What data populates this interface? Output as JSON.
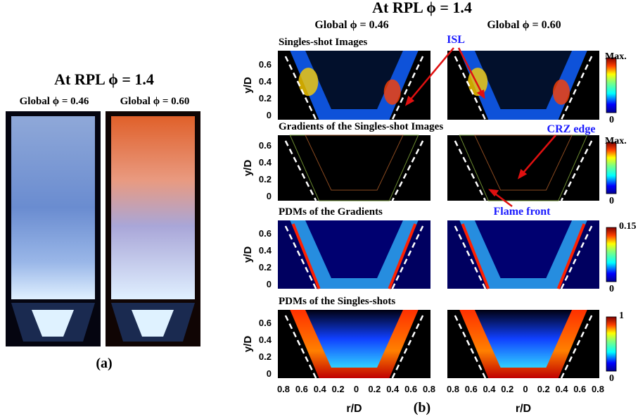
{
  "panel_a": {
    "title": "At RPL ϕ = 1.4",
    "columns": [
      "Global ϕ = 0.46",
      "Global ϕ = 0.60"
    ],
    "label": "(a)"
  },
  "panel_b": {
    "title": "At RPL ϕ = 1.4",
    "columns": [
      "Global ϕ = 0.46",
      "Global ϕ = 0.60"
    ],
    "rows": [
      {
        "title": "Singles-shot Images",
        "colorbar": {
          "max": "Max.",
          "min": "0"
        }
      },
      {
        "title": "Gradients of the Singles-shot Images",
        "colorbar": {
          "max": "Max.",
          "min": "0"
        }
      },
      {
        "title": "PDMs of the Gradients",
        "colorbar": {
          "max": "0.15",
          "min": "0"
        }
      },
      {
        "title": "PDMs of the Singles-shots",
        "colorbar": {
          "max": "1",
          "min": "0"
        }
      }
    ],
    "y_label": "y/D",
    "y_ticks": [
      "0.6",
      "0.4",
      "0.2",
      "0"
    ],
    "x_label": "r/D",
    "x_ticks": [
      "0.8",
      "0.6",
      "0.4",
      "0.2",
      "0",
      "0.2",
      "0.4",
      "0.6",
      "0.8"
    ],
    "annotations": [
      "ISL",
      "CRZ edge",
      "Flame front"
    ],
    "label": "(b)"
  }
}
